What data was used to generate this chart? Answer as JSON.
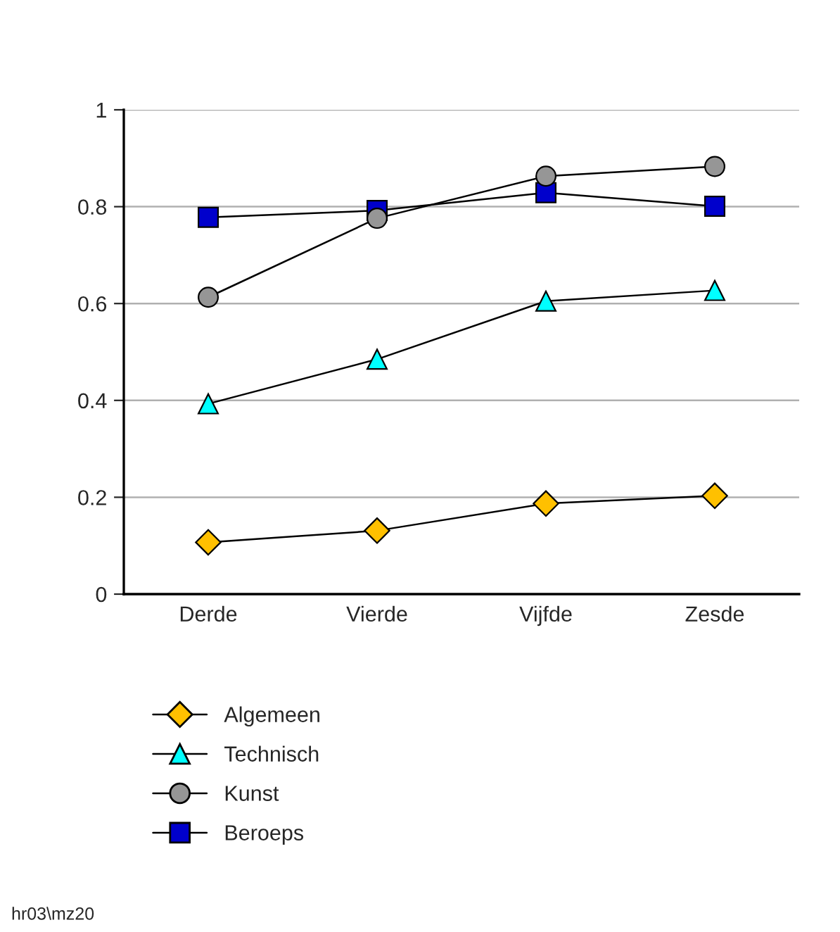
{
  "chart_data": {
    "type": "line",
    "categories": [
      "Derde",
      "Vierde",
      "Vijfde",
      "Zesde"
    ],
    "series": [
      {
        "name": "Algemeen",
        "color": "#ffc000",
        "marker": "diamond",
        "values": [
          0.107,
          0.131,
          0.187,
          0.203
        ]
      },
      {
        "name": "Technisch",
        "color": "#00ffff",
        "marker": "triangle",
        "values": [
          0.393,
          0.485,
          0.605,
          0.627
        ]
      },
      {
        "name": "Kunst",
        "color": "#969696",
        "marker": "circle",
        "values": [
          0.613,
          0.776,
          0.863,
          0.883
        ]
      },
      {
        "name": "Beroeps",
        "color": "#0000cc",
        "marker": "square",
        "values": [
          0.778,
          0.792,
          0.829,
          0.801
        ]
      }
    ],
    "ylim": [
      0,
      1
    ],
    "yticks": [
      0,
      0.2,
      0.4,
      0.6,
      0.8,
      1
    ],
    "grid": "y",
    "legend": "bottom left",
    "line_style": "solid",
    "annotations": [
      "hr03\\mz20"
    ]
  }
}
